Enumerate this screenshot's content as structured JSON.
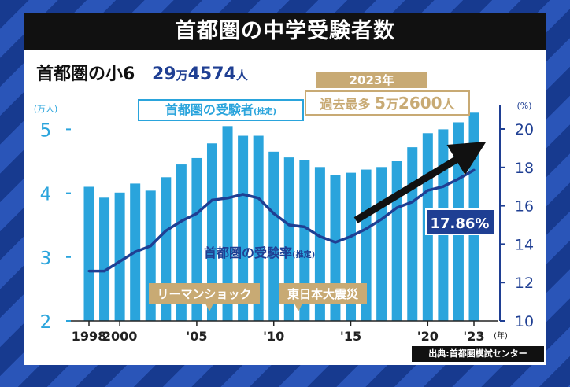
{
  "title": "首都圏の中学受験者数",
  "subtitle": {
    "label": "首都圏の小6",
    "count": "29",
    "count_unit1": "万",
    "count_rest": "4574",
    "count_unit2": "人"
  },
  "callout": {
    "year": "2023年",
    "text_prefix": "過去最多",
    "text_value1": "5",
    "text_unit1": "万",
    "text_value2": "2600",
    "text_unit2": "人"
  },
  "rate_label": "17.86%",
  "annotations": {
    "lehman": "リーマンショック",
    "earthquake": "東日本大震災"
  },
  "source": "出典:首都圏模試センター",
  "colors": {
    "bar": "#2aa4dc",
    "line": "#1f3f93",
    "gold": "#c8aa74",
    "dark": "#111111"
  },
  "chart_data": {
    "type": "bar",
    "title": "首都圏の中学受験者数",
    "left_axis": {
      "unit_label": "(万人)",
      "range": [
        2,
        5.4
      ],
      "ticks": [
        "2",
        "3",
        "4",
        "5"
      ]
    },
    "right_axis": {
      "unit_label": "(%)",
      "range": [
        10,
        21
      ],
      "ticks": [
        "10",
        "12",
        "14",
        "16",
        "18",
        "20"
      ]
    },
    "x_unit_label": "(年)",
    "years": [
      1998,
      1999,
      2000,
      2001,
      2002,
      2003,
      2004,
      2005,
      2006,
      2007,
      2008,
      2009,
      2010,
      2011,
      2012,
      2013,
      2014,
      2015,
      2016,
      2017,
      2018,
      2019,
      2020,
      2021,
      2022,
      2023
    ],
    "x_tick_labels": [
      {
        "year": 1998,
        "label": "1998"
      },
      {
        "year": 2000,
        "label": "2000"
      },
      {
        "year": 2005,
        "label": "'05"
      },
      {
        "year": 2010,
        "label": "'10"
      },
      {
        "year": 2015,
        "label": "'15"
      },
      {
        "year": 2020,
        "label": "'20"
      },
      {
        "year": 2023,
        "label": "'23"
      }
    ],
    "series": [
      {
        "name": "首都圏の受験者",
        "name_note": "(推定)",
        "kind": "bar",
        "axis": "left",
        "unit": "万人",
        "values": [
          4.1,
          3.93,
          4.01,
          4.15,
          4.04,
          4.25,
          4.45,
          4.55,
          4.78,
          5.05,
          4.9,
          4.9,
          4.65,
          4.56,
          4.52,
          4.41,
          4.28,
          4.32,
          4.37,
          4.41,
          4.5,
          4.72,
          4.94,
          5.0,
          5.11,
          5.26
        ]
      },
      {
        "name": "首都圏の受験率",
        "name_note": "(推定)",
        "kind": "line",
        "axis": "right",
        "unit": "%",
        "values": [
          12.6,
          12.6,
          13.1,
          13.6,
          13.9,
          14.7,
          15.2,
          15.6,
          16.3,
          16.4,
          16.6,
          16.4,
          15.6,
          15.0,
          14.9,
          14.4,
          14.1,
          14.4,
          14.8,
          15.3,
          15.9,
          16.2,
          16.8,
          17.0,
          17.4,
          17.86
        ]
      }
    ],
    "trend_arrow": {
      "from_year": 2015,
      "to_year": 2023
    }
  }
}
